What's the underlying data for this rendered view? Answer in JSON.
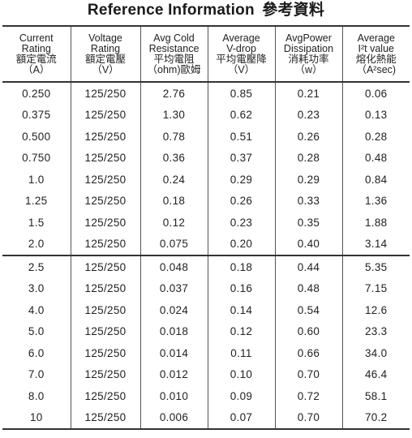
{
  "title": {
    "en": "Reference Information",
    "zh": "參考資料"
  },
  "headers": [
    [
      "Current",
      "Rating",
      "額定電流",
      "（A）"
    ],
    [
      "Voltage",
      "Rating",
      "額定電壓",
      "（V）"
    ],
    [
      "Avg Cold",
      "Resistance",
      "平均電阻",
      "（ohm)歐姆"
    ],
    [
      "Average",
      "V-drop",
      "平均電壓降",
      "（V）"
    ],
    [
      "AvgPower",
      "Dissipation",
      "消耗功率",
      "（w）"
    ],
    [
      "Average",
      "I²t value",
      "熔化熱能",
      "（A²sec)"
    ]
  ],
  "rows": [
    [
      "0.250",
      "125/250",
      "2.76",
      "0.85",
      "0.21",
      "0.06"
    ],
    [
      "0.375",
      "125/250",
      "1.30",
      "0.62",
      "0.23",
      "0.13"
    ],
    [
      "0.500",
      "125/250",
      "0.78",
      "0.51",
      "0.26",
      "0.28"
    ],
    [
      "0.750",
      "125/250",
      "0.36",
      "0.37",
      "0.28",
      "0.48"
    ],
    [
      "1.0",
      "125/250",
      "0.24",
      "0.29",
      "0.29",
      "0.84"
    ],
    [
      "1.25",
      "125/250",
      "0.18",
      "0.26",
      "0.33",
      "1.36"
    ],
    [
      "1.5",
      "125/250",
      "0.12",
      "0.23",
      "0.35",
      "1.88"
    ],
    [
      "2.0",
      "125/250",
      "0.075",
      "0.20",
      "0.40",
      "3.14"
    ],
    [
      "2.5",
      "125/250",
      "0.048",
      "0.18",
      "0.44",
      "5.35"
    ],
    [
      "3.0",
      "125/250",
      "0.037",
      "0.16",
      "0.48",
      "7.15"
    ],
    [
      "4.0",
      "125/250",
      "0.024",
      "0.14",
      "0.54",
      "12.6"
    ],
    [
      "5.0",
      "125/250",
      "0.018",
      "0.12",
      "0.60",
      "23.3"
    ],
    [
      "6.0",
      "125/250",
      "0.014",
      "0.11",
      "0.66",
      "34.0"
    ],
    [
      "7.0",
      "125/250",
      "0.012",
      "0.10",
      "0.70",
      "46.4"
    ],
    [
      "8.0",
      "125/250",
      "0.010",
      "0.09",
      "0.72",
      "58.1"
    ],
    [
      "10",
      "125/250",
      "0.006",
      "0.07",
      "0.70",
      "70.2"
    ]
  ]
}
